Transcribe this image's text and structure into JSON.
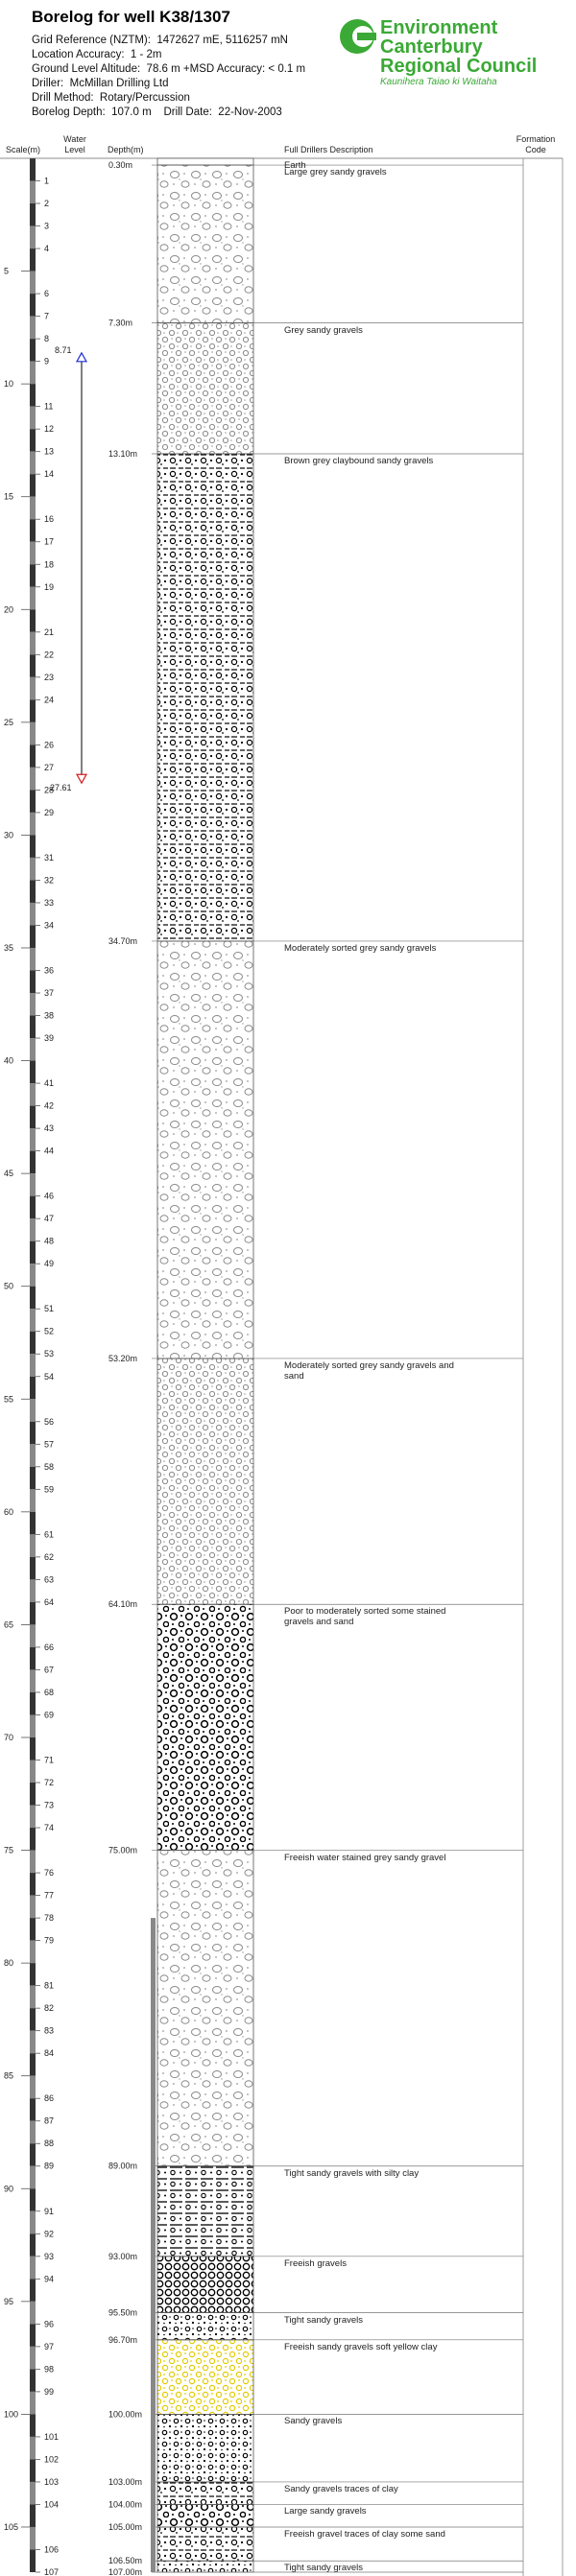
{
  "header": {
    "title": "Borelog for well K38/1307",
    "info": [
      "Grid Reference (NZTM):  1472627 mE, 5116257 mN",
      "Location Accuracy:  1 - 2m",
      "Ground Level Altitude:  78.6 m +MSD Accuracy: < 0.1 m",
      "Driller:  McMillan Drilling Ltd",
      "Drill Method:  Rotary/Percussion",
      "Borelog Depth:  107.0 m    Drill Date:  22-Nov-2003"
    ]
  },
  "logo": {
    "lines": [
      "Environment",
      "Canterbury",
      "Regional Council"
    ],
    "tagline": "Kaunihera Taiao ki Waitaha"
  },
  "columns": {
    "scale": "Scale(m)",
    "water_level": "Water Level",
    "depth": "Depth(m)",
    "description": "Full Drillers Description",
    "formation": "Formation Code"
  },
  "scale": {
    "lim": [
      0,
      107
    ],
    "ticks": [
      1,
      2,
      3,
      4,
      5,
      6,
      7,
      8,
      9,
      10,
      11,
      12,
      13,
      14,
      15,
      16,
      17,
      18,
      19,
      20,
      21,
      22,
      23,
      24,
      25,
      26,
      27,
      28,
      29,
      30,
      31,
      32,
      33,
      34,
      35,
      36,
      37,
      38,
      39,
      40,
      41,
      42,
      43,
      44,
      45,
      46,
      47,
      48,
      49,
      50,
      51,
      52,
      53,
      54,
      55,
      56,
      57,
      58,
      59,
      60,
      61,
      62,
      63,
      64,
      65,
      66,
      67,
      68,
      69,
      70,
      71,
      72,
      73,
      74,
      75,
      76,
      77,
      78,
      79,
      80,
      81,
      82,
      83,
      84,
      85,
      86,
      87,
      88,
      89,
      90,
      91,
      92,
      93,
      94,
      95,
      96,
      97,
      98,
      99,
      100,
      101,
      102,
      103,
      104,
      105,
      106,
      107
    ]
  },
  "water_level": {
    "top": 8.71,
    "bottom": 27.61
  },
  "casing": [
    78,
    107
  ],
  "layers": [
    {
      "bottom": {
        "value": 0.3,
        "label": "0.30m"
      },
      "description": "Earth",
      "pattern": "earth"
    },
    {
      "bottom": {
        "value": 7.3,
        "label": "7.30m"
      },
      "description": "Large grey sandy gravels",
      "pattern": "grey-large"
    },
    {
      "bottom": {
        "value": 13.1,
        "label": "13.10m"
      },
      "description": "Grey sandy gravels",
      "pattern": "grey"
    },
    {
      "bottom": {
        "value": 34.7,
        "label": "34.70m"
      },
      "description": "Brown grey claybound sandy gravels",
      "pattern": "claybound"
    },
    {
      "bottom": {
        "value": 53.2,
        "label": "53.20m"
      },
      "description": "Moderately sorted grey sandy gravels",
      "pattern": "grey-large"
    },
    {
      "bottom": {
        "value": 64.1,
        "label": "64.10m"
      },
      "description": "Moderately sorted grey sandy gravels and sand",
      "pattern": "grey"
    },
    {
      "bottom": {
        "value": 75,
        "label": "75.00m"
      },
      "description": "Poor to moderately sorted some stained gravels and sand",
      "pattern": "black-gravel"
    },
    {
      "bottom": {
        "value": 89,
        "label": "89.00m"
      },
      "description": "Freeish water stained grey sandy gravel",
      "pattern": "grey-large"
    },
    {
      "bottom": {
        "value": 93,
        "label": "93.00m"
      },
      "description": "Tight sandy gravels with silty clay",
      "pattern": "silty"
    },
    {
      "bottom": {
        "value": 95.5,
        "label": "95.50m"
      },
      "description": "Freeish gravels",
      "pattern": "dense"
    },
    {
      "bottom": {
        "value": 96.7,
        "label": "96.70m"
      },
      "description": "Tight sandy gravels",
      "pattern": "black-sand"
    },
    {
      "bottom": {
        "value": 100,
        "label": "100.00m"
      },
      "description": "Freeish sandy gravels soft yellow clay",
      "pattern": "yellow"
    },
    {
      "bottom": {
        "value": 103,
        "label": "103.00m"
      },
      "description": "Sandy gravels",
      "pattern": "black-sand"
    },
    {
      "bottom": {
        "value": 104,
        "label": "104.00m"
      },
      "description": "Sandy gravels traces of clay",
      "pattern": "claybound"
    },
    {
      "bottom": {
        "value": 105,
        "label": "105.00m"
      },
      "description": "Large sandy gravels",
      "pattern": "black-gravel"
    },
    {
      "bottom": {
        "value": 106.5,
        "label": "106.50m"
      },
      "description": "Freeish gravel traces of clay some sand",
      "pattern": "claybound"
    },
    {
      "bottom": {
        "value": 107,
        "label": "107.00m"
      },
      "description": "Tight sandy gravels",
      "pattern": "black-sand"
    }
  ]
}
